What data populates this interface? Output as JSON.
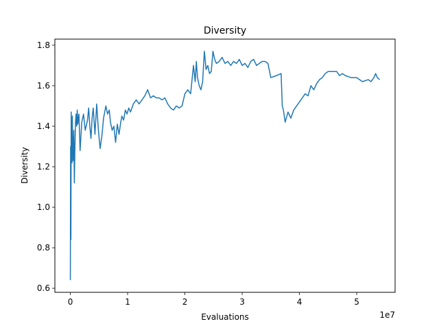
{
  "chart_data": {
    "type": "line",
    "title": "Diversity",
    "xlabel": "Evaluations",
    "ylabel": "Diversity",
    "x_offset_label": "1e7",
    "xlim": [
      -2700000,
      56700000
    ],
    "ylim": [
      0.58,
      1.83
    ],
    "xticks": [
      0,
      10000000,
      20000000,
      30000000,
      40000000,
      50000000
    ],
    "xtick_labels": [
      "0",
      "1",
      "2",
      "3",
      "4",
      "5"
    ],
    "yticks": [
      0.6,
      0.8,
      1.0,
      1.2,
      1.4,
      1.6,
      1.8
    ],
    "ytick_labels": [
      "0.6",
      "0.8",
      "1.0",
      "1.2",
      "1.4",
      "1.6",
      "1.8"
    ],
    "grid": false,
    "color": "#1f77b4",
    "series": [
      {
        "x": [
          0,
          50000,
          100000,
          150000,
          200000,
          250000,
          300000,
          350000,
          400000,
          450000,
          500000,
          600000,
          700000,
          800000,
          900000,
          1000000,
          1100000,
          1200000,
          1300000,
          1400000,
          1500000,
          1700000,
          2000000,
          2300000,
          2600000,
          3000000,
          3200000,
          3400000,
          3600000,
          3800000,
          4000000,
          4300000,
          4600000,
          4900000,
          5200000,
          5500000,
          5800000,
          6000000,
          6200000,
          6500000,
          6800000,
          7000000,
          7300000,
          7600000,
          7900000,
          8200000,
          8500000,
          8800000,
          9000000,
          9300000,
          9600000,
          9900000,
          10200000,
          10500000,
          11000000,
          11500000,
          12000000,
          12500000,
          13000000,
          13500000,
          14000000,
          14500000,
          15000000,
          15500000,
          16000000,
          16500000,
          17000000,
          17500000,
          18000000,
          18500000,
          19000000,
          19500000,
          20000000,
          20500000,
          21000000,
          21500000,
          21800000,
          22000000,
          22200000,
          22500000,
          22800000,
          23100000,
          23400000,
          23700000,
          24000000,
          24300000,
          24600000,
          24900000,
          25200000,
          25500000,
          26000000,
          26500000,
          27000000,
          27500000,
          28000000,
          28500000,
          29000000,
          29500000,
          30000000,
          30500000,
          31000000,
          31500000,
          32000000,
          32500000,
          33000000,
          33500000,
          34000000,
          34500000,
          35000000,
          36000000,
          36800000,
          37000000,
          37200000,
          37500000,
          37800000,
          38000000,
          38500000,
          39000000,
          39500000,
          40000000,
          40500000,
          41000000,
          41500000,
          42000000,
          42500000,
          43000000,
          43500000,
          44000000,
          44500000,
          45000000,
          45500000,
          46000000,
          46500000,
          47000000,
          47500000,
          48000000,
          49000000,
          50000000,
          51000000,
          52000000,
          52500000,
          53000000,
          53300000,
          53600000,
          54000000
        ],
        "y": [
          0.64,
          1.3,
          0.84,
          1.47,
          1.26,
          1.42,
          1.22,
          1.45,
          1.3,
          1.35,
          1.23,
          1.38,
          1.12,
          1.3,
          1.42,
          1.46,
          1.4,
          1.48,
          1.41,
          1.44,
          1.46,
          1.28,
          1.42,
          1.46,
          1.38,
          1.43,
          1.49,
          1.4,
          1.34,
          1.44,
          1.49,
          1.36,
          1.51,
          1.38,
          1.29,
          1.35,
          1.44,
          1.47,
          1.5,
          1.46,
          1.48,
          1.42,
          1.38,
          1.4,
          1.32,
          1.41,
          1.36,
          1.42,
          1.45,
          1.43,
          1.48,
          1.46,
          1.49,
          1.47,
          1.51,
          1.53,
          1.51,
          1.53,
          1.55,
          1.58,
          1.54,
          1.55,
          1.54,
          1.54,
          1.53,
          1.54,
          1.51,
          1.49,
          1.48,
          1.5,
          1.49,
          1.5,
          1.56,
          1.58,
          1.56,
          1.7,
          1.62,
          1.72,
          1.64,
          1.6,
          1.58,
          1.62,
          1.77,
          1.68,
          1.7,
          1.66,
          1.67,
          1.77,
          1.73,
          1.71,
          1.72,
          1.74,
          1.71,
          1.72,
          1.7,
          1.72,
          1.71,
          1.73,
          1.7,
          1.71,
          1.69,
          1.72,
          1.73,
          1.7,
          1.71,
          1.72,
          1.72,
          1.71,
          1.64,
          1.65,
          1.66,
          1.5,
          1.48,
          1.42,
          1.45,
          1.47,
          1.44,
          1.48,
          1.5,
          1.52,
          1.54,
          1.56,
          1.55,
          1.6,
          1.58,
          1.61,
          1.63,
          1.64,
          1.66,
          1.67,
          1.67,
          1.67,
          1.67,
          1.65,
          1.66,
          1.65,
          1.64,
          1.64,
          1.62,
          1.63,
          1.62,
          1.64,
          1.66,
          1.64,
          1.63
        ]
      }
    ]
  }
}
